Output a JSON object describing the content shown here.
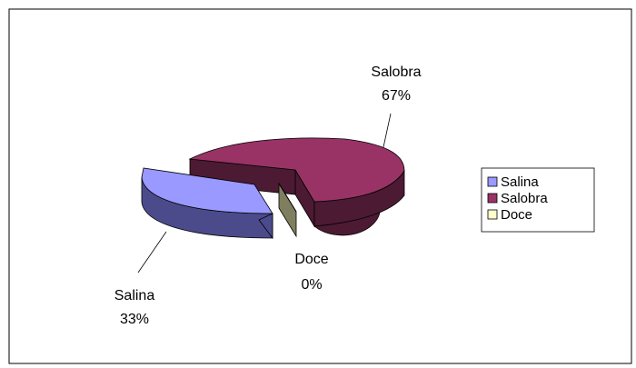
{
  "chart_data": {
    "type": "pie",
    "style": "3d-exploded",
    "title": "",
    "slices": [
      {
        "name": "Salina",
        "value": 33,
        "label": "33%",
        "color": "#9999FF",
        "side_color": "#4B4B8C"
      },
      {
        "name": "Salobra",
        "value": 67,
        "label": "67%",
        "color": "#993366",
        "side_color": "#4C1A33"
      },
      {
        "name": "Doce",
        "value": 0,
        "label": "0%",
        "color": "#FFFFCC",
        "side_color": "#7F7F60"
      }
    ],
    "legend": {
      "placement": "right",
      "entries": [
        "Salina",
        "Salobra",
        "Doce"
      ]
    }
  }
}
